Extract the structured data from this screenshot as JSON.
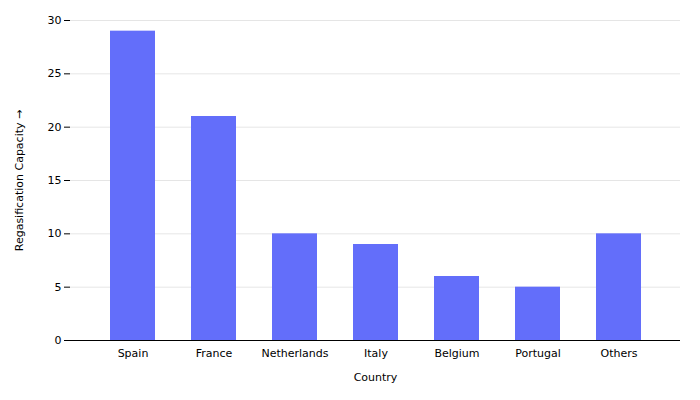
{
  "chart_data": {
    "type": "bar",
    "categories": [
      "Spain",
      "France",
      "Netherlands",
      "Italy",
      "Belgium",
      "Portugal",
      "Others"
    ],
    "values": [
      29,
      21,
      10,
      9,
      6,
      5,
      10
    ],
    "color": "#636efa",
    "xlabel": "Country",
    "ylabel": "Regasification Capacity",
    "ylim": [
      0,
      30
    ],
    "yticks": [
      0,
      5,
      10,
      15,
      20,
      25,
      30
    ],
    "grid": true
  }
}
